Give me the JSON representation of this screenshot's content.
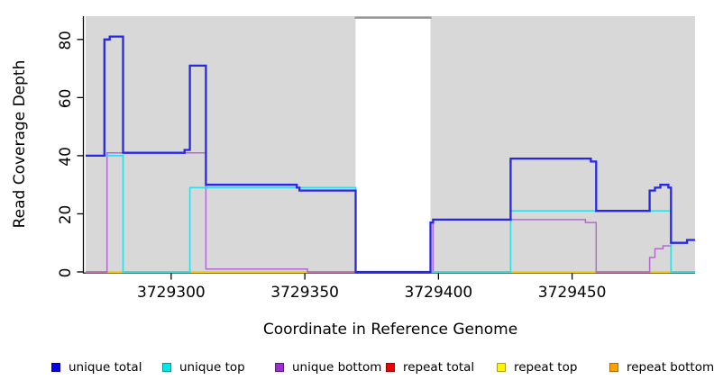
{
  "figure": {
    "x_axis_label": "Coordinate in Reference Genome",
    "y_axis_label": "Read Coverage Depth"
  },
  "legend": {
    "items": [
      {
        "label": "unique total",
        "color": "#0000e1",
        "border": "#0000a0"
      },
      {
        "label": "unique top",
        "color": "#00e8ea",
        "border": "#009a9c"
      },
      {
        "label": "unique bottom",
        "color": "#9b30cf",
        "border": "#5c1888"
      },
      {
        "label": "repeat total",
        "color": "#ee0000",
        "border": "#990000"
      },
      {
        "label": "repeat top",
        "color": "#fff500",
        "border": "#b0a000"
      },
      {
        "label": "repeat bottom",
        "color": "#ffa200",
        "border": "#aa6c00"
      }
    ]
  },
  "chart_data": {
    "type": "line",
    "subtype": "step",
    "title": "",
    "xlabel": "Coordinate in Reference Genome",
    "ylabel": "Read Coverage Depth",
    "xlim": [
      3729268,
      3729496
    ],
    "ylim": [
      0,
      88
    ],
    "x_ticks": [
      3729300,
      3729350,
      3729400,
      3729450
    ],
    "y_ticks": [
      0,
      20,
      40,
      60,
      80
    ],
    "grid": false,
    "legend_position": "bottom",
    "panel_background": "#d8d8d8",
    "no_data_gap": {
      "from": 3729369,
      "to": 3729397,
      "border_color": "#8f8f8f"
    },
    "series": [
      {
        "name": "repeat total",
        "color": "#ee0000",
        "width": 1.4,
        "end": 3729496,
        "points": [
          [
            3729268,
            0
          ]
        ]
      },
      {
        "name": "repeat top",
        "color": "#fff500",
        "width": 1.4,
        "end": 3729496,
        "points": [
          [
            3729268,
            0
          ]
        ]
      },
      {
        "name": "unique bottom",
        "color": "#b469d2",
        "width": 1.5,
        "end": 3729496,
        "points": [
          [
            3729268,
            0
          ],
          [
            3729276,
            41
          ],
          [
            3729313,
            1
          ],
          [
            3729351,
            0
          ],
          [
            3729398,
            18
          ],
          [
            3729455,
            17
          ],
          [
            3729459,
            0
          ],
          [
            3729479,
            5
          ],
          [
            3729481,
            8
          ],
          [
            3729484,
            9
          ],
          [
            3729487,
            0
          ]
        ]
      },
      {
        "name": "unique top",
        "color": "#2fe0e8",
        "width": 1.7,
        "end": 3729496,
        "points": [
          [
            3729268,
            40
          ],
          [
            3729282,
            0
          ],
          [
            3729307,
            29
          ],
          [
            3729369,
            0
          ],
          [
            3729427,
            21
          ],
          [
            3729487,
            0
          ]
        ]
      },
      {
        "name": "unique total",
        "color": "#2626ec",
        "width": 2.3,
        "end": 3729496,
        "points": [
          [
            3729268,
            40
          ],
          [
            3729275,
            80
          ],
          [
            3729277,
            81
          ],
          [
            3729282,
            41
          ],
          [
            3729305,
            42
          ],
          [
            3729307,
            71
          ],
          [
            3729313,
            30
          ],
          [
            3729347,
            29
          ],
          [
            3729348,
            28
          ],
          [
            3729369,
            0
          ],
          [
            3729397,
            17
          ],
          [
            3729398,
            18
          ],
          [
            3729427,
            39
          ],
          [
            3729457,
            38
          ],
          [
            3729459,
            21
          ],
          [
            3729479,
            28
          ],
          [
            3729481,
            29
          ],
          [
            3729483,
            30
          ],
          [
            3729486,
            29
          ],
          [
            3729487,
            10
          ],
          [
            3729493,
            11
          ]
        ]
      }
    ],
    "baseline_segments": [
      {
        "from": 3729268,
        "to": 3729276,
        "color": "#d4638f"
      },
      {
        "from": 3729276,
        "to": 3729282,
        "color": "#ff9e1f"
      },
      {
        "from": 3729282,
        "to": 3729306,
        "color": "#5ec98c"
      },
      {
        "from": 3729306,
        "to": 3729351,
        "color": "#ff9e1f"
      },
      {
        "from": 3729351,
        "to": 3729369,
        "color": "#c968c1"
      },
      {
        "from": 3729397,
        "to": 3729427,
        "color": "#5ec98c"
      },
      {
        "from": 3729427,
        "to": 3729459,
        "color": "#ff9e1f"
      },
      {
        "from": 3729459,
        "to": 3729479,
        "color": "#d4638f"
      },
      {
        "from": 3729479,
        "to": 3729487,
        "color": "#ff9e1f"
      },
      {
        "from": 3729487,
        "to": 3729496,
        "color": "#5ec98c"
      }
    ]
  }
}
